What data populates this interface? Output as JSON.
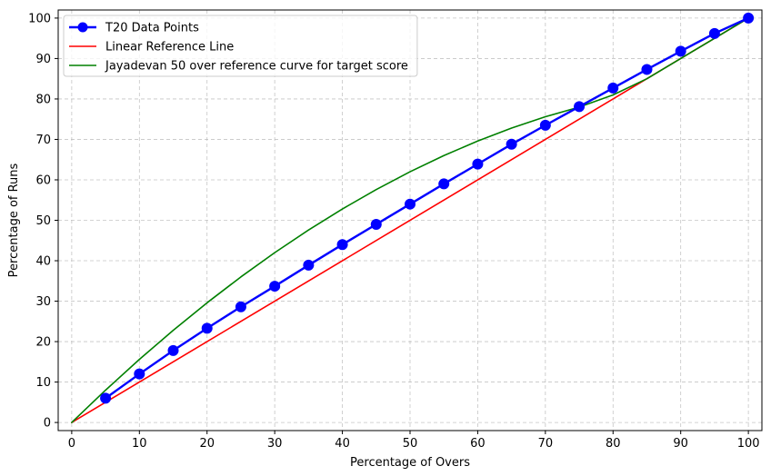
{
  "chart_data": {
    "type": "line",
    "xlabel": "Percentage of Overs",
    "ylabel": "Percentage of Runs",
    "xlim": [
      -2,
      102
    ],
    "ylim": [
      -2,
      102
    ],
    "xticks": [
      0,
      10,
      20,
      30,
      40,
      50,
      60,
      70,
      80,
      90,
      100
    ],
    "yticks": [
      0,
      10,
      20,
      30,
      40,
      50,
      60,
      70,
      80,
      90,
      100
    ],
    "grid": true,
    "legend_position": "top-left",
    "series": [
      {
        "name": "T20 Data Points",
        "style": "line-with-markers",
        "color": "#0000ff",
        "x": [
          5,
          10,
          15,
          20,
          25,
          30,
          35,
          40,
          45,
          50,
          55,
          60,
          65,
          70,
          75,
          80,
          85,
          90,
          95,
          100
        ],
        "y": [
          6,
          12,
          17.8,
          23.3,
          28.6,
          33.7,
          38.9,
          44,
          49,
          54,
          59,
          63.9,
          68.8,
          73.5,
          78.1,
          82.7,
          87.3,
          91.8,
          96.2,
          100
        ]
      },
      {
        "name": "Linear Reference Line",
        "style": "line",
        "color": "#ff0000",
        "x": [
          0,
          100
        ],
        "y": [
          0,
          100
        ]
      },
      {
        "name": "Jayadevan 50 over reference curve for target score",
        "style": "line",
        "color": "#008000",
        "x": [
          0,
          5,
          10,
          15,
          20,
          25,
          30,
          35,
          40,
          45,
          50,
          55,
          60,
          65,
          70,
          75,
          80,
          85,
          90,
          95,
          100
        ],
        "y": [
          0,
          8,
          15.6,
          22.8,
          29.6,
          36,
          42,
          47.6,
          52.8,
          57.6,
          62,
          66,
          69.6,
          72.8,
          75.6,
          78,
          81,
          85,
          90,
          95,
          100
        ]
      }
    ]
  }
}
